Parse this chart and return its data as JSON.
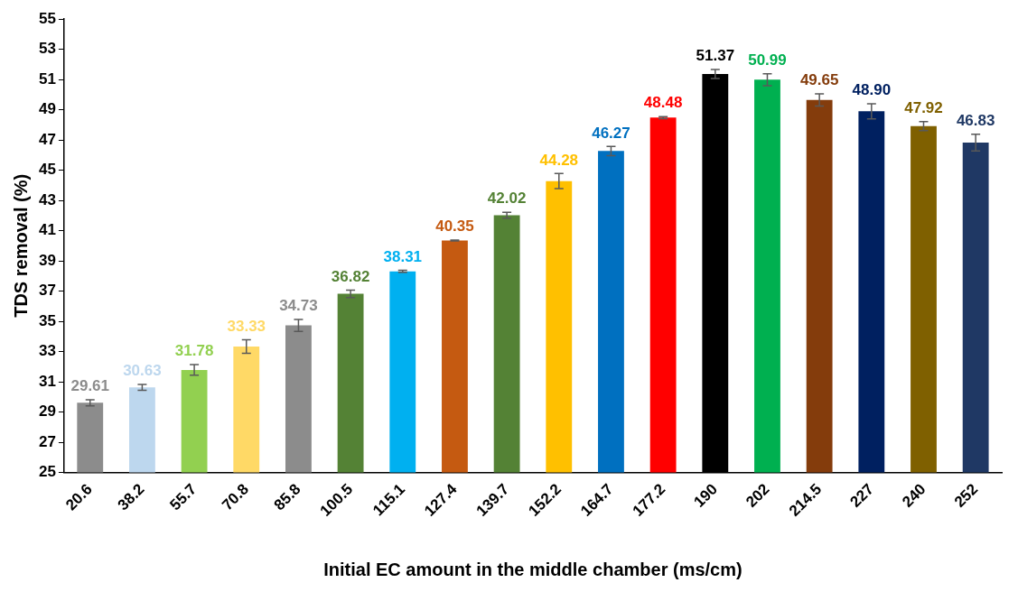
{
  "chart_data": {
    "type": "bar",
    "xlabel": "Initial EC amount in the middle chamber (ms/cm)",
    "ylabel": "TDS removal (%)",
    "categories": [
      "20.6",
      "38.2",
      "55.7",
      "70.8",
      "85.8",
      "100.5",
      "115.1",
      "127.4",
      "139.7",
      "152.2",
      "164.7",
      "177.2",
      "190",
      "202",
      "214.5",
      "227",
      "240",
      "252"
    ],
    "values": [
      29.61,
      30.63,
      31.78,
      33.33,
      34.73,
      36.82,
      38.31,
      40.35,
      42.02,
      44.28,
      46.27,
      48.48,
      51.37,
      50.99,
      49.65,
      48.9,
      47.92,
      46.83
    ],
    "value_labels": [
      "29.61",
      "30.63",
      "31.78",
      "33.33",
      "34.73",
      "36.82",
      "38.31",
      "40.35",
      "42.02",
      "44.28",
      "46.27",
      "48.48",
      "51.37",
      "50.99",
      "49.65",
      "48.90",
      "47.92",
      "46.83"
    ],
    "errors": [
      0.2,
      0.2,
      0.35,
      0.45,
      0.4,
      0.25,
      0.07,
      0.03,
      0.2,
      0.5,
      0.3,
      0.07,
      0.3,
      0.4,
      0.4,
      0.5,
      0.3,
      0.55
    ],
    "colors": [
      "#8c8c8c",
      "#bdd7ee",
      "#92d050",
      "#ffd966",
      "#8c8c8c",
      "#548235",
      "#00b0f0",
      "#c55a11",
      "#548235",
      "#ffc000",
      "#0070c0",
      "#ff0000",
      "#000000",
      "#00b050",
      "#843c0c",
      "#002060",
      "#7f6000",
      "#1f3864"
    ],
    "ylim": [
      25,
      55
    ],
    "yticks": [
      25,
      27,
      29,
      31,
      33,
      35,
      37,
      39,
      41,
      43,
      45,
      47,
      49,
      51,
      53,
      55
    ],
    "grid": false,
    "legend": false
  }
}
